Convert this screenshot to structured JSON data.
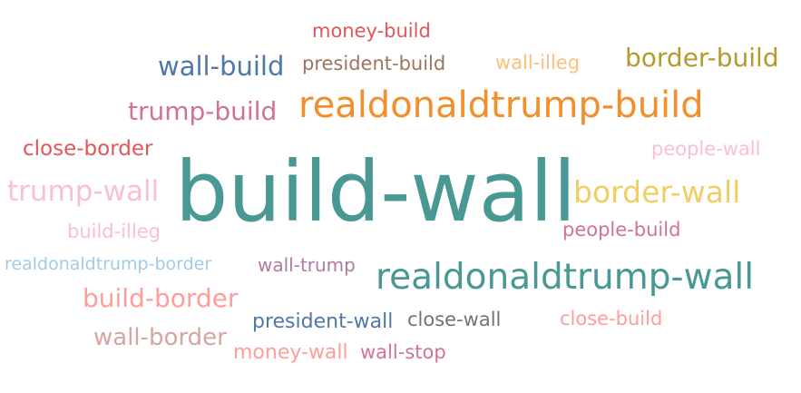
{
  "chart_data": {
    "type": "wordcloud",
    "words": [
      {
        "text": "money-build",
        "color": "#e05759"
      },
      {
        "text": "wall-build",
        "color": "#4e79a7"
      },
      {
        "text": "president-build",
        "color": "#9c755f"
      },
      {
        "text": "wall-illeg",
        "color": "#ffbe7d"
      },
      {
        "text": "border-build",
        "color": "#b6992d"
      },
      {
        "text": "trump-build",
        "color": "#d37295"
      },
      {
        "text": "realdonaldtrump-build",
        "color": "#f28e2b"
      },
      {
        "text": "close-border",
        "color": "#e15759"
      },
      {
        "text": "people-wall",
        "color": "#fabfd2"
      },
      {
        "text": "trump-wall",
        "color": "#fabfd2"
      },
      {
        "text": "build-wall",
        "color": "#499894"
      },
      {
        "text": "border-wall",
        "color": "#f1ce63"
      },
      {
        "text": "build-illeg",
        "color": "#fabfd2"
      },
      {
        "text": "people-build",
        "color": "#d37295"
      },
      {
        "text": "realdonaldtrump-border",
        "color": "#a0cbe8"
      },
      {
        "text": "wall-trump",
        "color": "#b07aa1"
      },
      {
        "text": "realdonaldtrump-wall",
        "color": "#499894"
      },
      {
        "text": "build-border",
        "color": "#ff9d9a"
      },
      {
        "text": "president-wall",
        "color": "#4e79a7"
      },
      {
        "text": "close-wall",
        "color": "#79706e"
      },
      {
        "text": "close-build",
        "color": "#ff9d9a"
      },
      {
        "text": "wall-border",
        "color": "#d4a6a0"
      },
      {
        "text": "money-wall",
        "color": "#ff9d9a"
      },
      {
        "text": "wall-stop",
        "color": "#d37295"
      }
    ]
  }
}
